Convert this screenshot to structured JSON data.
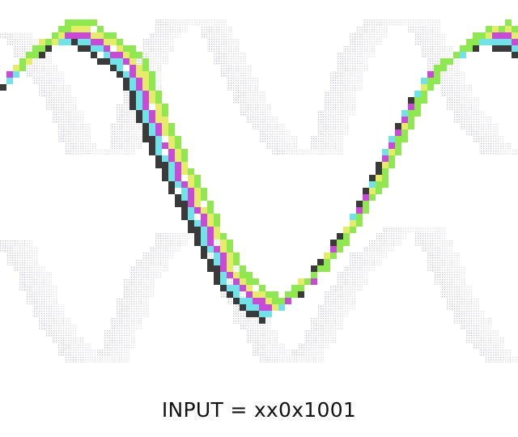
{
  "caption": "INPUT = xx0x1001",
  "colors": {
    "band": [
      "#3a3a3a",
      "#6fe3e8",
      "#c84ad6",
      "#e6ec6a",
      "#8ee84f"
    ],
    "ghost": "#c8bfd6",
    "background": "#ffffff",
    "text": "#111111"
  }
}
